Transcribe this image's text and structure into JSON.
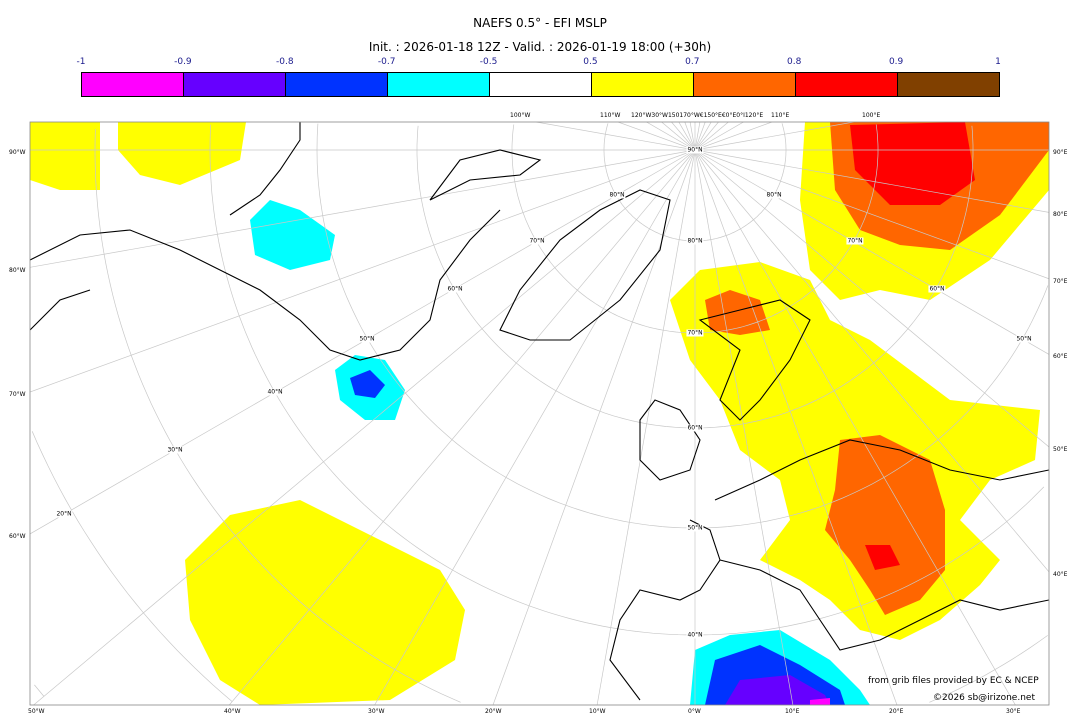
{
  "title": "NAEFS 0.5° - EFI MSLP",
  "subtitle": "Init. : 2026-01-18 12Z - Valid. : 2026-01-19 18:00 (+30h)",
  "colorbar": {
    "ticks": [
      "-1",
      "-0.9",
      "-0.8",
      "-0.7",
      "-0.5",
      "0.5",
      "0.7",
      "0.8",
      "0.9",
      "1"
    ],
    "colors": [
      "#ff00ff",
      "#6600ff",
      "#0033ff",
      "#00ffff",
      "#ffffff",
      "#ffff00",
      "#ff6600",
      "#ff0000",
      "#804000"
    ]
  },
  "axes": {
    "left": [
      "90°W",
      "80°W",
      "70°W",
      "60°W"
    ],
    "right": [
      "90°E",
      "80°E",
      "70°E",
      "60°E",
      "50°E",
      "40°E"
    ],
    "bottom": [
      "50°W",
      "40°W",
      "30°W",
      "20°W",
      "10°W",
      "0°W",
      "10°E",
      "20°E",
      "30°E"
    ],
    "top": [
      "100°W",
      "110°W",
      "120°W30°W150170°W€150°E€0°E0°I120°E",
      "110°E",
      "100°E"
    ]
  },
  "latitude_labels": [
    "90°N",
    "80°N",
    "70°N",
    "60°N",
    "50°N",
    "40°N",
    "30°N",
    "20°N",
    "80°N",
    "70°N",
    "60°N",
    "50°N",
    "80°N",
    "70°N",
    "60°N",
    "50°N",
    "40°N"
  ],
  "credits": {
    "source": "from grib files provided by EC & NCEP",
    "copyright": "©2026 sb@irizone.net"
  }
}
